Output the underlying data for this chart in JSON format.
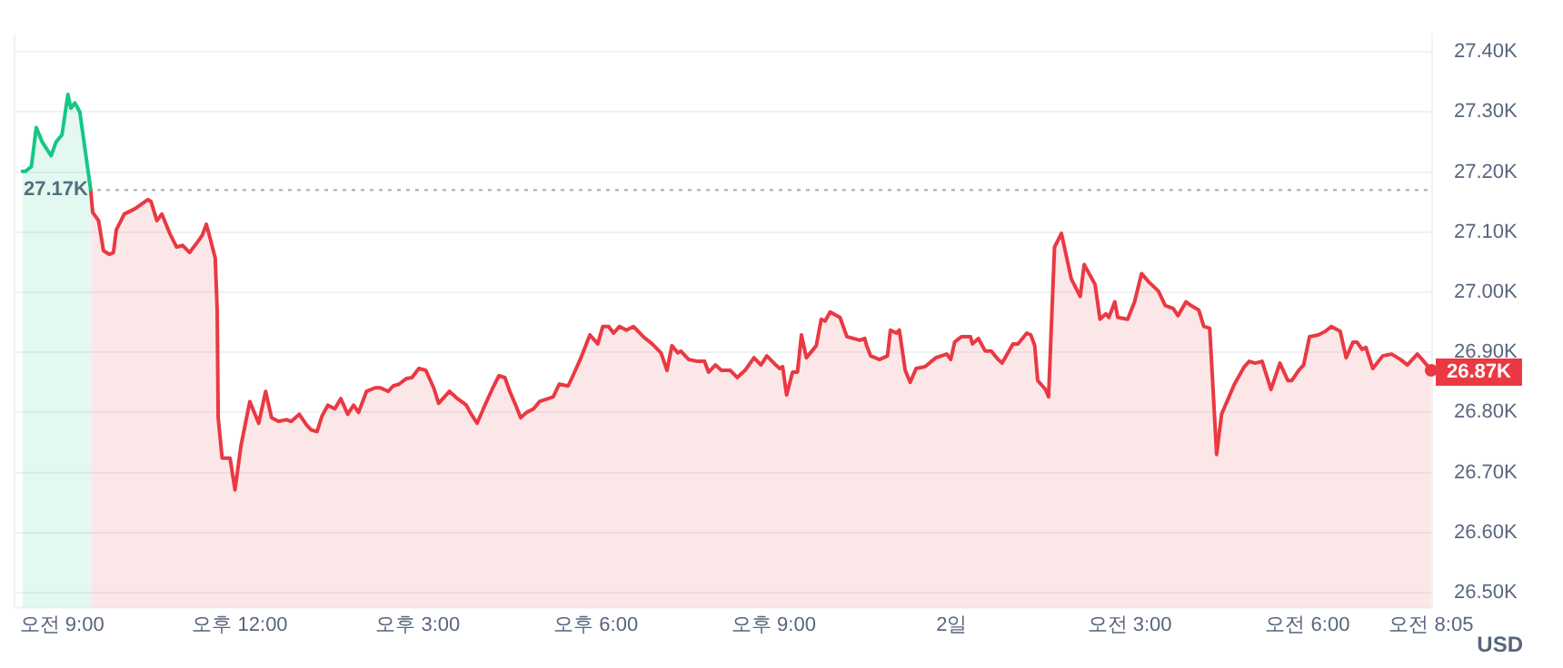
{
  "chart_data": {
    "type": "area",
    "ylabel": "USD",
    "xlim": [
      "--06-01T08:12",
      "--06-02T08:06"
    ],
    "xticks": [
      {
        "value": "--06-01T09:00",
        "label": "오전 9:00"
      },
      {
        "value": "--06-01T12:00",
        "label": "오후 12:00"
      },
      {
        "value": "--06-01T15:00",
        "label": "오후 3:00"
      },
      {
        "value": "--06-01T18:00",
        "label": "오후 6:00"
      },
      {
        "value": "--06-01T21:00",
        "label": "오후 9:00"
      },
      {
        "value": "--06-02T00:00",
        "label": "2일"
      },
      {
        "value": "--06-02T03:00",
        "label": "오전 3:00"
      },
      {
        "value": "--06-02T06:00",
        "label": "오전 6:00"
      },
      {
        "value": "--06-02T08:05",
        "label": "오전 8:05"
      }
    ],
    "ylim": [
      26475,
      27430
    ],
    "yticks": [
      {
        "value": 26500,
        "label": "26.50K"
      },
      {
        "value": 26600,
        "label": "26.60K"
      },
      {
        "value": 26700,
        "label": "26.70K"
      },
      {
        "value": 26800,
        "label": "26.80K"
      },
      {
        "value": 26900,
        "label": "26.90K"
      },
      {
        "value": 27000,
        "label": "27.00K"
      },
      {
        "value": 27100,
        "label": "27.10K"
      },
      {
        "value": 27200,
        "label": "27.20K"
      },
      {
        "value": 27300,
        "label": "27.30K"
      },
      {
        "value": 27400,
        "label": "27.40K"
      }
    ],
    "grid": "y",
    "legend": false,
    "ref_lines": [
      {
        "axis": "y",
        "value": 27170,
        "label": "27.17K",
        "color": "#a6b0c3",
        "line_style": "dotted"
      }
    ],
    "annotations": [
      {
        "text": "26.87K",
        "x": "--06-02T08:05",
        "y": 26870
      }
    ],
    "series": [
      {
        "color": "#16c784",
        "x": [
          "--06-01T08:20",
          "--06-01T08:23",
          "--06-01T08:29",
          "--06-01T08:34",
          "--06-01T08:40",
          "--06-01T08:49",
          "--06-01T08:54",
          "--06-01T09:00",
          "--06-01T09:06",
          "--06-01T09:09",
          "--06-01T09:13",
          "--06-01T09:18",
          "--06-01T09:29"
        ],
        "values": [
          27201,
          27201,
          27209,
          27274,
          27250,
          27227,
          27250,
          27262,
          27329,
          27306,
          27315,
          27300,
          27171
        ]
      },
      {
        "color": "#ea3943",
        "x": [
          "--06-01T09:29",
          "--06-01T09:31",
          "--06-01T09:37",
          "--06-01T09:42",
          "--06-01T09:48",
          "--06-01T09:52",
          "--06-01T09:55",
          "--06-01T10:03",
          "--06-01T10:14",
          "--06-01T10:27",
          "--06-01T10:30",
          "--06-01T10:36",
          "--06-01T10:41",
          "--06-01T10:49",
          "--06-01T10:56",
          "--06-01T11:02",
          "--06-01T11:09",
          "--06-01T11:16",
          "--06-01T11:22",
          "--06-01T11:26",
          "--06-01T11:29",
          "--06-01T11:35",
          "--06-01T11:37",
          "--06-01T11:38",
          "--06-01T11:42",
          "--06-01T11:50",
          "--06-01T11:55",
          "--06-01T12:01",
          "--06-01T12:10",
          "--06-01T12:19",
          "--06-01T12:26",
          "--06-01T12:32",
          "--06-01T12:39",
          "--06-01T12:47",
          "--06-01T12:52",
          "--06-01T13:00",
          "--06-01T13:07",
          "--06-01T13:12",
          "--06-01T13:18",
          "--06-01T13:23",
          "--06-01T13:29",
          "--06-01T13:36",
          "--06-01T13:42",
          "--06-01T13:49",
          "--06-01T13:55",
          "--06-01T14:00",
          "--06-01T14:08",
          "--06-01T14:17",
          "--06-01T14:22",
          "--06-01T14:30",
          "--06-01T14:35",
          "--06-01T14:41",
          "--06-01T14:48",
          "--06-01T14:54",
          "--06-01T15:01",
          "--06-01T15:08",
          "--06-01T15:16",
          "--06-01T15:21",
          "--06-01T15:32",
          "--06-01T15:40",
          "--06-01T15:49",
          "--06-01T15:54",
          "--06-01T16:00",
          "--06-01T16:07",
          "--06-01T16:15",
          "--06-01T16:22",
          "--06-01T16:28",
          "--06-01T16:33",
          "--06-01T16:39",
          "--06-01T16:44",
          "--06-01T16:50",
          "--06-01T16:57",
          "--06-01T17:03",
          "--06-01T17:12",
          "--06-01T17:17",
          "--06-01T17:23",
          "--06-01T17:32",
          "--06-01T17:36",
          "--06-01T17:45",
          "--06-01T17:54",
          "--06-01T18:02",
          "--06-01T18:07",
          "--06-01T18:13",
          "--06-01T18:18",
          "--06-01T18:24",
          "--06-01T18:31",
          "--06-01T18:38",
          "--06-01T18:48",
          "--06-01T18:57",
          "--06-01T19:06",
          "--06-01T19:12",
          "--06-01T19:17",
          "--06-01T19:23",
          "--06-01T19:26",
          "--06-01T19:34",
          "--06-01T19:43",
          "--06-01T19:50",
          "--06-01T19:54",
          "--06-01T20:01",
          "--06-01T20:07",
          "--06-01T20:16",
          "--06-01T20:23",
          "--06-01T20:31",
          "--06-01T20:40",
          "--06-01T20:47",
          "--06-01T20:53",
          "--06-01T21:02",
          "--06-01T21:06",
          "--06-01T21:09",
          "--06-01T21:13",
          "--06-01T21:19",
          "--06-01T21:24",
          "--06-01T21:28",
          "--06-01T21:33",
          "--06-01T21:43",
          "--06-01T21:48",
          "--06-01T21:52",
          "--06-01T21:57",
          "--06-01T22:07",
          "--06-01T22:14",
          "--06-01T22:27",
          "--06-01T22:32",
          "--06-01T22:34",
          "--06-01T22:38",
          "--06-01T22:47",
          "--06-01T22:55",
          "--06-01T22:58",
          "--06-01T23:04",
          "--06-01T23:07",
          "--06-01T23:13",
          "--06-01T23:18",
          "--06-01T23:24",
          "--06-01T23:33",
          "--06-01T23:44",
          "--06-01T23:55",
          "--06-01T23:59",
          "--06-02T00:03",
          "--06-02T00:10",
          "--06-02T00:19",
          "--06-02T00:21",
          "--06-02T00:27",
          "--06-02T00:34",
          "--06-02T00:40",
          "--06-02T00:47",
          "--06-02T00:51",
          "--06-02T01:02",
          "--06-02T01:07",
          "--06-02T01:16",
          "--06-02T01:20",
          "--06-02T01:24",
          "--06-02T01:27",
          "--06-02T01:35",
          "--06-02T01:38",
          "--06-02T01:44",
          "--06-02T01:51",
          "--06-02T02:01",
          "--06-02T02:10",
          "--06-02T02:14",
          "--06-02T02:25",
          "--06-02T02:30",
          "--06-02T02:36",
          "--06-02T02:39",
          "--06-02T02:45",
          "--06-02T02:48",
          "--06-02T02:58",
          "--06-02T03:05",
          "--06-02T03:12",
          "--06-02T03:20",
          "--06-02T03:29",
          "--06-02T03:36",
          "--06-02T03:44",
          "--06-02T03:49",
          "--06-02T03:57",
          "--06-02T04:02",
          "--06-02T04:10",
          "--06-02T04:15",
          "--06-02T04:21",
          "--06-02T04:28",
          "--06-02T04:33",
          "--06-02T04:46",
          "--06-02T04:56",
          "--06-02T05:01",
          "--06-02T05:07",
          "--06-02T05:14",
          "--06-02T05:23",
          "--06-02T05:32",
          "--06-02T05:40",
          "--06-02T05:44",
          "--06-02T05:51",
          "--06-02T05:56",
          "--06-02T06:02",
          "--06-02T06:11",
          "--06-02T06:18",
          "--06-02T06:24",
          "--06-02T06:33",
          "--06-02T06:39",
          "--06-02T06:46",
          "--06-02T06:50",
          "--06-02T06:55",
          "--06-02T06:59",
          "--06-02T07:06",
          "--06-02T07:16",
          "--06-02T07:25",
          "--06-02T07:34",
          "--06-02T07:41",
          "--06-02T07:51",
          "--06-02T07:56",
          "--06-02T08:05"
        ],
        "values": [
          27171,
          27133,
          27119,
          27069,
          27063,
          27066,
          27104,
          27130,
          27139,
          27154,
          27151,
          27119,
          27130,
          27098,
          27075,
          27078,
          27066,
          27081,
          27095,
          27113,
          27095,
          27057,
          26970,
          26791,
          26724,
          26724,
          26671,
          26744,
          26818,
          26782,
          26835,
          26791,
          26785,
          26788,
          26785,
          26797,
          26780,
          26771,
          26768,
          26794,
          26812,
          26806,
          26823,
          26797,
          26812,
          26800,
          26835,
          26841,
          26841,
          26835,
          26844,
          26847,
          26856,
          26858,
          26873,
          26870,
          26841,
          26815,
          26835,
          26823,
          26812,
          26797,
          26782,
          26809,
          26838,
          26861,
          26858,
          26835,
          26812,
          26791,
          26800,
          26806,
          26818,
          26823,
          26826,
          26847,
          26844,
          26858,
          26891,
          26929,
          26914,
          26943,
          26943,
          26932,
          26943,
          26937,
          26943,
          26926,
          26914,
          26899,
          26870,
          26911,
          26899,
          26902,
          26888,
          26885,
          26885,
          26867,
          26879,
          26870,
          26870,
          26858,
          26870,
          26891,
          26879,
          26894,
          26879,
          26873,
          26876,
          26829,
          26867,
          26867,
          26929,
          26891,
          26911,
          26955,
          26952,
          26967,
          26958,
          26926,
          26920,
          26923,
          26911,
          26894,
          26888,
          26894,
          26937,
          26932,
          26937,
          26870,
          26850,
          26873,
          26876,
          26891,
          26897,
          26888,
          26917,
          26926,
          26926,
          26914,
          26923,
          26902,
          26902,
          26888,
          26882,
          26914,
          26914,
          26932,
          26929,
          26911,
          26853,
          26838,
          26826,
          27075,
          27098,
          27022,
          26993,
          27046,
          27013,
          26955,
          26964,
          26958,
          26984,
          26958,
          26955,
          26984,
          27031,
          27016,
          27002,
          26978,
          26973,
          26961,
          26984,
          26978,
          26970,
          26943,
          26940,
          26730,
          26797,
          26847,
          26876,
          26885,
          26882,
          26885,
          26838,
          26882,
          26853,
          26853,
          26870,
          26879,
          26926,
          26929,
          26935,
          26943,
          26935,
          26891,
          26917,
          26917,
          26905,
          26908,
          26873,
          26894,
          26897,
          26888,
          26879,
          26897,
          26888,
          26870
        ]
      }
    ]
  }
}
